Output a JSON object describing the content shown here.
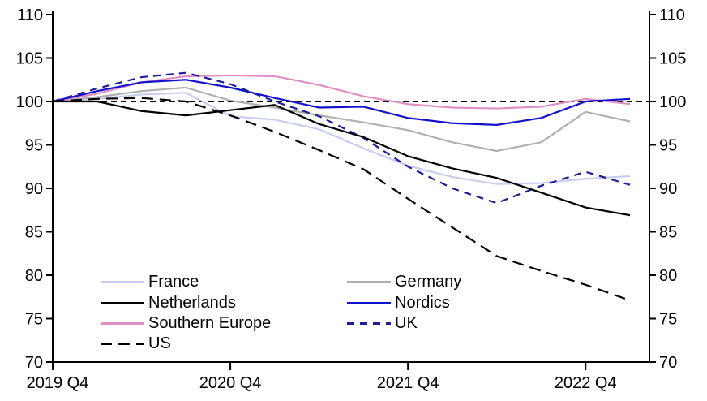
{
  "chart_data": {
    "type": "line",
    "title": "",
    "xlabel": "",
    "ylabel": "",
    "ylim": [
      70,
      110
    ],
    "y_ticks": [
      70,
      75,
      80,
      85,
      90,
      95,
      100,
      105,
      110
    ],
    "y_axis_sides": [
      "left",
      "right"
    ],
    "reference_line": 100,
    "grid": false,
    "x_quarters": [
      "2019 Q4",
      "2020 Q1",
      "2020 Q2",
      "2020 Q3",
      "2020 Q4",
      "2021 Q1",
      "2021 Q2",
      "2021 Q3",
      "2021 Q4",
      "2022 Q1",
      "2022 Q2",
      "2022 Q3",
      "2022 Q4",
      "2023 Q1"
    ],
    "x_tick_labels": [
      "2019 Q4",
      "2020 Q4",
      "2021 Q4",
      "2022 Q4"
    ],
    "x_tick_positions": [
      0,
      4,
      8,
      12
    ],
    "series": [
      {
        "name": "France",
        "color": "#c7ccf1",
        "dash": "",
        "values": [
          100,
          100.3,
          100.8,
          101.0,
          98.3,
          97.9,
          96.8,
          94.6,
          92.6,
          91.3,
          90.5,
          90.6,
          91.1,
          91.4
        ]
      },
      {
        "name": "Netherlands",
        "color": "#000000",
        "dash": "",
        "values": [
          100,
          100.0,
          98.9,
          98.4,
          99.0,
          99.6,
          97.4,
          95.9,
          93.7,
          92.3,
          91.2,
          89.5,
          87.8,
          86.9
        ]
      },
      {
        "name": "Southern Europe",
        "color": "#df8fc6",
        "dash": "",
        "values": [
          100,
          100.9,
          102.2,
          102.9,
          103.0,
          102.9,
          101.9,
          100.6,
          99.7,
          99.3,
          99.2,
          99.4,
          100.3,
          99.7
        ]
      },
      {
        "name": "US",
        "color": "#000000",
        "dash": "14 8",
        "values": [
          100,
          100.3,
          100.4,
          100.0,
          98.4,
          96.5,
          94.4,
          92.2,
          88.8,
          85.5,
          82.2,
          80.5,
          78.9,
          77.1
        ]
      },
      {
        "name": "Germany",
        "color": "#b0b0b0",
        "dash": "",
        "values": [
          100,
          100.5,
          101.2,
          101.6,
          100.1,
          99.3,
          98.4,
          97.6,
          96.7,
          95.3,
          94.3,
          95.3,
          98.8,
          97.7
        ]
      },
      {
        "name": "Nordics",
        "color": "#1212cd",
        "dash": "",
        "values": [
          100,
          101.2,
          102.2,
          102.5,
          101.6,
          100.4,
          99.3,
          99.4,
          98.1,
          97.5,
          97.3,
          98.1,
          100.0,
          100.3
        ]
      },
      {
        "name": "UK",
        "color": "#1d1d9e",
        "dash": "9 7",
        "values": [
          100,
          101.5,
          102.8,
          103.3,
          102.0,
          100.0,
          98.3,
          95.8,
          92.5,
          90.0,
          88.3,
          90.3,
          91.9,
          90.4
        ]
      }
    ],
    "legend_position": "inside-bottom-left",
    "colors": {
      "background": "#ffffff",
      "axis": "#000000",
      "reference": "#000000"
    }
  }
}
